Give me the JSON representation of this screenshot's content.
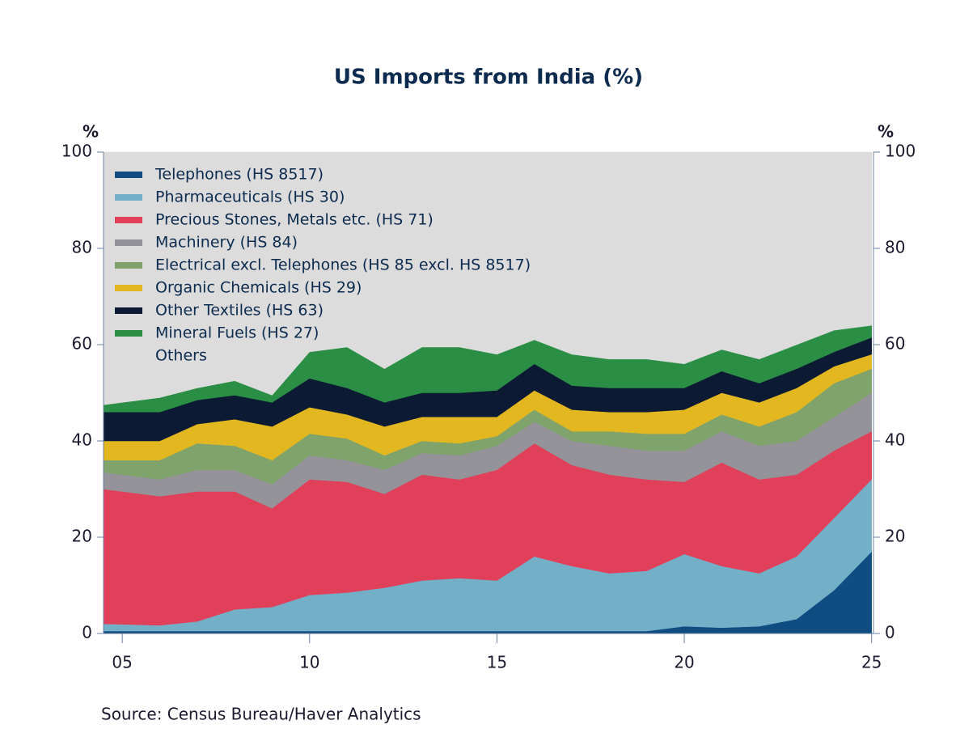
{
  "chart_data": {
    "type": "stacked_area",
    "title": "US Imports from India (%)",
    "y_unit_label": "%",
    "y2_unit_label": "%",
    "source": "Source:  Census Bureau/Haver Analytics",
    "x": [
      2004.5,
      2006,
      2007,
      2008,
      2009,
      2010,
      2011,
      2012,
      2013,
      2014,
      2015,
      2016,
      2017,
      2018,
      2019,
      2020,
      2021,
      2022,
      2023,
      2024,
      2025
    ],
    "xlim": [
      2004.5,
      2025.05
    ],
    "xticks": [
      {
        "value": 2005,
        "label": "05"
      },
      {
        "value": 2010,
        "label": "10"
      },
      {
        "value": 2015,
        "label": "15"
      },
      {
        "value": 2020,
        "label": "20"
      },
      {
        "value": 2025,
        "label": "25"
      }
    ],
    "ylim": [
      0,
      100
    ],
    "yticks": [
      0,
      20,
      40,
      60,
      80,
      100
    ],
    "y2lim": [
      0,
      100
    ],
    "y2ticks": [
      0,
      20,
      40,
      60,
      80,
      100
    ],
    "legend": "top-left",
    "series": [
      {
        "name": "Telephones (HS 8517)",
        "color": "#0f4c81",
        "values": [
          0.5,
          0.5,
          0.5,
          0.5,
          0.5,
          0.5,
          0.5,
          0.5,
          0.5,
          0.5,
          0.5,
          0.5,
          0.5,
          0.5,
          0.5,
          1.5,
          1.2,
          1.5,
          3,
          9,
          17
        ]
      },
      {
        "name": "Pharmaceuticals (HS 30)",
        "color": "#74afc8",
        "values": [
          1.5,
          1.2,
          2,
          4.5,
          5,
          7.5,
          8,
          9,
          10.5,
          11,
          10.5,
          15.5,
          13.5,
          12,
          12.5,
          15,
          12.8,
          11,
          13,
          15,
          15
        ]
      },
      {
        "name": "Precious Stones, Metals etc. (HS 71)",
        "color": "#e0405a",
        "values": [
          28,
          26.8,
          27,
          24.5,
          20.5,
          24,
          23,
          19.5,
          22,
          20.5,
          23,
          23.5,
          21,
          20.5,
          19,
          15,
          21.5,
          19.5,
          17,
          14,
          10
        ]
      },
      {
        "name": "Machinery (HS 84)",
        "color": "#939399",
        "values": [
          3.5,
          3.5,
          4.5,
          4.5,
          5,
          5,
          4.5,
          5,
          4.5,
          5,
          5,
          4.5,
          5,
          6,
          6,
          6.5,
          6.5,
          7,
          7,
          7,
          8
        ]
      },
      {
        "name": "Electrical excl. Telephones (HS 85 excl. HS 8517)",
        "color": "#7fa36a",
        "values": [
          2.5,
          4,
          5.5,
          5,
          5,
          4.5,
          4.5,
          3,
          2.5,
          2.5,
          2,
          2.5,
          2,
          3,
          3.5,
          3.5,
          3.5,
          4,
          6,
          7,
          5
        ]
      },
      {
        "name": "Organic Chemicals (HS 29)",
        "color": "#e2b720",
        "values": [
          4,
          4,
          4,
          5.5,
          7,
          5.5,
          5,
          6,
          5,
          5.5,
          4,
          4,
          4.5,
          4,
          4.5,
          5,
          4.5,
          5,
          5,
          3.5,
          3
        ]
      },
      {
        "name": "Other Textiles (HS 63)",
        "color": "#0d1a33",
        "values": [
          6,
          6,
          5,
          5,
          5,
          6,
          5.5,
          5,
          5,
          5,
          5.5,
          5.5,
          5,
          5,
          5,
          4.5,
          4.5,
          4,
          4,
          3,
          3.5
        ]
      },
      {
        "name": "Mineral Fuels (HS 27)",
        "color": "#2a8f45",
        "values": [
          1.5,
          3,
          2.5,
          3,
          1.5,
          5.5,
          8.5,
          7,
          9.5,
          9.5,
          7.5,
          5,
          6.5,
          6,
          6,
          5,
          4.5,
          5,
          5,
          4.5,
          2.5
        ]
      },
      {
        "name": "Others",
        "color": "#dcdcdc",
        "values": [
          52.5,
          51,
          49,
          47.5,
          50.5,
          41.5,
          40.5,
          45,
          40.5,
          40.5,
          42,
          39,
          42,
          43,
          43,
          44,
          41,
          43,
          40,
          37,
          36
        ]
      }
    ]
  }
}
